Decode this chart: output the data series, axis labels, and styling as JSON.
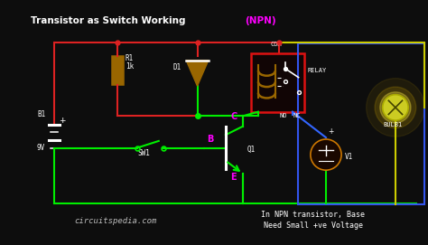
{
  "bg_color": "#0d0d0d",
  "title_white": "Transistor as Switch Working ",
  "title_npn": "(NPN)",
  "title_color": "#ffffff",
  "title_npn_color": "#ff00ff",
  "website": "circuitspedia.com",
  "subtitle1": "In NPN transistor, Base",
  "subtitle2": "Need Small +ve Voltage",
  "rw": "#dd2222",
  "gw": "#00ee00",
  "yw": "#cccc00",
  "bw": "#3366ff",
  "mag": "#ff00ff",
  "org": "#996600",
  "wh": "#ffffff",
  "yel": "#dddd00",
  "lw": 1.5
}
